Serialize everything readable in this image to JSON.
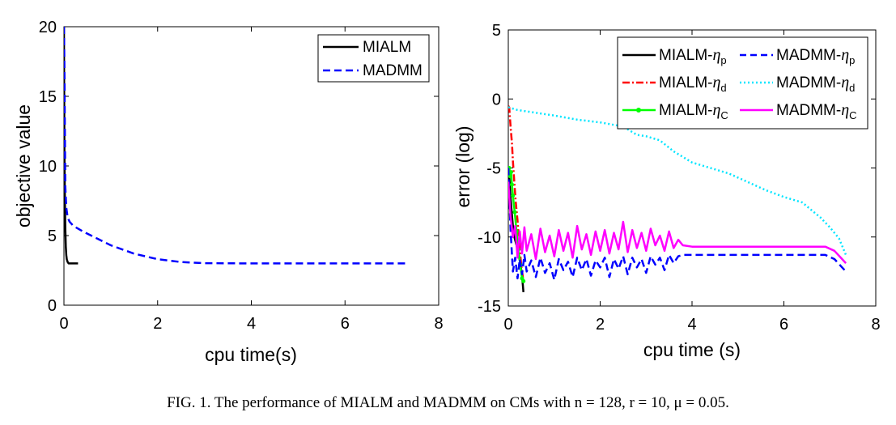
{
  "caption": "FIG. 1.  The performance of MIALM and MADMM on CMs with n = 128, r = 10, μ = 0.05.",
  "chart_data": [
    {
      "type": "line",
      "xlabel": "cpu time(s)",
      "ylabel": "objective value",
      "xlim": [
        0,
        8
      ],
      "ylim": [
        0,
        20
      ],
      "xticks": [
        "0",
        "2",
        "4",
        "6",
        "8"
      ],
      "yticks": [
        "0",
        "5",
        "10",
        "15",
        "20"
      ],
      "grid": false,
      "legend": "top-right",
      "series": [
        {
          "name": "MIALM",
          "color": "#000000",
          "dash": "solid",
          "x": [
            0.0,
            0.005,
            0.01,
            0.02,
            0.03,
            0.04,
            0.05,
            0.06,
            0.08,
            0.1,
            0.15,
            0.2,
            0.25,
            0.3
          ],
          "y": [
            20,
            15,
            11,
            7.5,
            5.5,
            4.2,
            3.6,
            3.3,
            3.1,
            3.0,
            3.0,
            3.0,
            3.0,
            3.0
          ]
        },
        {
          "name": "MADMM",
          "color": "#0000ff",
          "dash": "dashed",
          "x": [
            0.0,
            0.01,
            0.02,
            0.03,
            0.05,
            0.08,
            0.12,
            0.2,
            0.4,
            0.7,
            1.0,
            1.5,
            2.0,
            2.5,
            3.0,
            4.0,
            5.0,
            6.0,
            7.35
          ],
          "y": [
            20,
            17,
            12,
            8.5,
            7.0,
            6.3,
            6.0,
            5.7,
            5.3,
            4.8,
            4.3,
            3.7,
            3.3,
            3.1,
            3.02,
            3.0,
            3.0,
            3.0,
            3.0
          ]
        }
      ]
    },
    {
      "type": "line",
      "xlabel": "cpu time (s)",
      "ylabel": "error (log)",
      "xlim": [
        0,
        8
      ],
      "ylim": [
        -15,
        5
      ],
      "xticks": [
        "0",
        "2",
        "4",
        "6",
        "8"
      ],
      "yticks": [
        "-15",
        "-10",
        "-5",
        "0",
        "5"
      ],
      "grid": false,
      "legend": "top-right",
      "series": [
        {
          "name": "MIALM-",
          "subscript": "p",
          "color": "#000000",
          "dash": "solid",
          "x": [
            0.0,
            0.02,
            0.05,
            0.08,
            0.1,
            0.14,
            0.18,
            0.22,
            0.26,
            0.3,
            0.33
          ],
          "y": [
            -6.0,
            -5.5,
            -7.2,
            -8.4,
            -9.2,
            -10.1,
            -10.6,
            -11.2,
            -11.9,
            -12.8,
            -14.0
          ]
        },
        {
          "name": "MIALM-",
          "subscript": "d",
          "color": "#ff0000",
          "dash": "dashdot",
          "x": [
            0.0,
            0.02,
            0.05,
            0.08,
            0.1,
            0.13,
            0.16,
            0.2,
            0.24,
            0.28,
            0.32
          ],
          "y": [
            -0.5,
            -0.6,
            -2.0,
            -3.2,
            -4.5,
            -6.0,
            -7.4,
            -8.8,
            -10.5,
            -12.0,
            -13.0
          ]
        },
        {
          "name": "MIALM-",
          "subscript": "C",
          "color": "#00ff00",
          "dash": "solid-marker",
          "x": [
            0.0,
            0.02,
            0.04,
            0.06,
            0.08,
            0.1,
            0.14,
            0.18,
            0.22,
            0.26,
            0.3,
            0.33
          ],
          "y": [
            -5.5,
            -5.0,
            -5.6,
            -5.3,
            -6.2,
            -7.0,
            -8.2,
            -9.6,
            -10.9,
            -12.0,
            -13.0,
            -13.2
          ]
        },
        {
          "name": "MADMM-",
          "subscript": "p",
          "color": "#0000ff",
          "dash": "dashed",
          "x": [
            0.0,
            0.05,
            0.1,
            0.15,
            0.2,
            0.25,
            0.3,
            0.35,
            0.4,
            0.5,
            0.6,
            0.7,
            0.8,
            0.9,
            1.0,
            1.1,
            1.2,
            1.3,
            1.4,
            1.5,
            1.6,
            1.7,
            1.8,
            1.9,
            2.0,
            2.1,
            2.2,
            2.3,
            2.4,
            2.5,
            2.6,
            2.7,
            2.8,
            2.9,
            3.0,
            3.1,
            3.2,
            3.3,
            3.4,
            3.5,
            3.6,
            3.7,
            3.8,
            4.0,
            5.0,
            6.0,
            6.9,
            7.1,
            7.35
          ],
          "y": [
            -5.0,
            -9.5,
            -12.5,
            -11.5,
            -13.0,
            -11.6,
            -12.7,
            -11.3,
            -12.5,
            -11.7,
            -12.9,
            -11.5,
            -12.6,
            -11.9,
            -13.1,
            -11.6,
            -12.4,
            -11.8,
            -12.9,
            -11.5,
            -12.4,
            -11.6,
            -12.8,
            -11.7,
            -12.2,
            -11.5,
            -12.9,
            -11.6,
            -12.3,
            -11.4,
            -12.7,
            -11.5,
            -12.2,
            -11.6,
            -12.6,
            -11.4,
            -12.0,
            -11.5,
            -12.4,
            -11.3,
            -11.9,
            -11.4,
            -11.3,
            -11.3,
            -11.3,
            -11.3,
            -11.3,
            -11.6,
            -12.5
          ]
        },
        {
          "name": "MADMM-",
          "subscript": "d",
          "color": "#00e5ff",
          "dash": "dotted",
          "x": [
            0.0,
            0.2,
            0.6,
            1.0,
            1.5,
            2.0,
            2.5,
            2.8,
            3.0,
            3.3,
            3.6,
            4.0,
            4.4,
            4.8,
            5.2,
            5.6,
            6.0,
            6.4,
            6.8,
            7.0,
            7.2,
            7.35
          ],
          "y": [
            -0.6,
            -0.8,
            -1.0,
            -1.2,
            -1.5,
            -1.7,
            -2.0,
            -2.6,
            -2.7,
            -3.0,
            -3.8,
            -4.6,
            -5.0,
            -5.4,
            -6.0,
            -6.6,
            -7.1,
            -7.5,
            -8.6,
            -9.3,
            -10.1,
            -11.3
          ]
        },
        {
          "name": "MADMM-",
          "subscript": "C",
          "color": "#ff00ff",
          "dash": "solid",
          "x": [
            0.0,
            0.05,
            0.1,
            0.15,
            0.2,
            0.25,
            0.3,
            0.35,
            0.4,
            0.5,
            0.6,
            0.7,
            0.8,
            0.9,
            1.0,
            1.1,
            1.2,
            1.3,
            1.4,
            1.5,
            1.6,
            1.7,
            1.8,
            1.9,
            2.0,
            2.1,
            2.2,
            2.3,
            2.4,
            2.5,
            2.6,
            2.7,
            2.8,
            2.9,
            3.0,
            3.1,
            3.2,
            3.3,
            3.4,
            3.5,
            3.6,
            3.7,
            3.8,
            4.0,
            5.0,
            6.0,
            6.9,
            7.1,
            7.35
          ],
          "y": [
            -6.0,
            -8.5,
            -10.0,
            -9.2,
            -11.5,
            -9.6,
            -11.2,
            -9.3,
            -11.0,
            -9.8,
            -11.6,
            -9.4,
            -11.1,
            -9.9,
            -11.4,
            -9.5,
            -11.0,
            -9.7,
            -11.5,
            -9.2,
            -10.9,
            -9.8,
            -11.3,
            -9.6,
            -11.0,
            -9.5,
            -11.2,
            -9.7,
            -10.9,
            -8.9,
            -11.1,
            -9.5,
            -10.8,
            -9.7,
            -11.0,
            -9.4,
            -10.6,
            -9.9,
            -11.0,
            -9.6,
            -10.8,
            -10.2,
            -10.6,
            -10.7,
            -10.7,
            -10.7,
            -10.7,
            -11.0,
            -11.9
          ]
        }
      ]
    }
  ]
}
